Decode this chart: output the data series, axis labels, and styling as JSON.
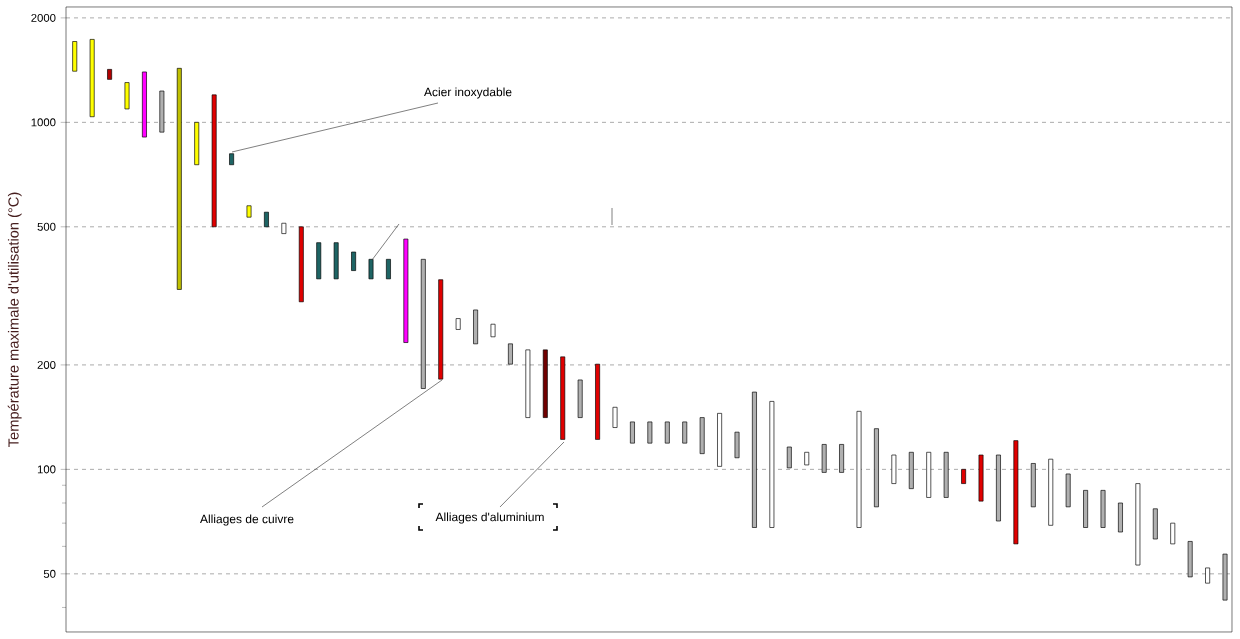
{
  "chart_data": {
    "type": "bar",
    "ylabel": "Température maximale d'utilisation (°C)",
    "categories": [
      null,
      null,
      null,
      null,
      null,
      null,
      null,
      null,
      null,
      null,
      null,
      null,
      null,
      null,
      null,
      null,
      null,
      null,
      null,
      null,
      null,
      null,
      null,
      null,
      null,
      null,
      null,
      null,
      null,
      null,
      null,
      null,
      null,
      null,
      null,
      null,
      null,
      null,
      null,
      null,
      null,
      null,
      null,
      null,
      null,
      null,
      null,
      null,
      null,
      null,
      null,
      null,
      null,
      null,
      null,
      null,
      null,
      null,
      null,
      null,
      null,
      null,
      null,
      null,
      null,
      null,
      null
    ],
    "base": [
      1404,
      1038,
      1330,
      1093,
      907,
      937,
      330,
      755,
      500,
      755,
      533,
      500,
      478,
      304,
      354,
      354,
      374,
      354,
      354,
      232,
      171,
      182,
      253,
      230,
      241,
      201,
      141,
      141,
      122,
      141,
      122,
      132,
      119,
      119,
      119,
      119,
      111,
      102,
      108,
      68,
      68,
      101,
      103,
      98,
      98,
      68,
      78,
      91,
      88,
      83,
      83,
      91,
      81,
      71,
      61,
      78,
      69,
      78,
      68,
      68,
      66,
      53,
      63,
      61,
      49,
      47,
      42
    ],
    "values": [
      306,
      696,
      91,
      209,
      490,
      294,
      1101,
      245,
      700,
      57,
      42,
      51,
      34,
      196,
      96,
      96,
      49,
      49,
      49,
      229,
      232,
      170,
      19,
      58,
      21,
      29,
      80,
      80,
      89,
      40,
      79,
      19,
      18,
      18,
      18,
      18,
      30,
      43,
      20,
      99,
      89,
      15,
      9,
      20,
      20,
      79,
      53,
      19,
      24,
      29,
      29,
      9,
      29,
      39,
      60,
      26,
      38,
      19,
      19,
      19,
      14,
      38,
      14,
      9,
      13,
      5,
      15
    ],
    "colors": [
      "#ffff00",
      "#ffff00",
      "#b00000",
      "#ffff00",
      "#ff00ff",
      "#b0b0b0",
      "#c0c000",
      "#ffff00",
      "#e00000",
      "#1e6464",
      "#ffff00",
      "#1e6464",
      "#ffffff",
      "#e00000",
      "#1e6464",
      "#1e6464",
      "#1e6464",
      "#1e6464",
      "#1e6464",
      "#ff00ff",
      "#b0b0b0",
      "#e00000",
      "#ffffff",
      "#b0b0b0",
      "#ffffff",
      "#b0b0b0",
      "#ffffff",
      "#700000",
      "#e00000",
      "#b0b0b0",
      "#e00000",
      "#ffffff",
      "#b0b0b0",
      "#b0b0b0",
      "#b0b0b0",
      "#b0b0b0",
      "#b0b0b0",
      "#ffffff",
      "#b0b0b0",
      "#b0b0b0",
      "#ffffff",
      "#b0b0b0",
      "#ffffff",
      "#b0b0b0",
      "#b0b0b0",
      "#ffffff",
      "#b0b0b0",
      "#ffffff",
      "#b0b0b0",
      "#ffffff",
      "#b0b0b0",
      "#e00000",
      "#e00000",
      "#b0b0b0",
      "#e00000",
      "#b0b0b0",
      "#ffffff",
      "#b0b0b0",
      "#b0b0b0",
      "#b0b0b0",
      "#b0b0b0",
      "#ffffff",
      "#b0b0b0",
      "#ffffff",
      "#b0b0b0",
      "#ffffff",
      "#b0b0b0"
    ],
    "log": true,
    "ylim": [
      34,
      2150
    ],
    "yticks": [
      50,
      100,
      200,
      500,
      1000,
      2000,
      {
        "value": 40,
        "label": null
      },
      {
        "value": 60,
        "label": null
      },
      {
        "value": 70,
        "label": null
      },
      {
        "value": 80,
        "label": null
      },
      {
        "value": 90,
        "label": null
      }
    ],
    "grid": "y",
    "annotations": [
      "Acier inoxydable",
      "Alliages de cuivre",
      "Alliages d'aluminium"
    ]
  }
}
